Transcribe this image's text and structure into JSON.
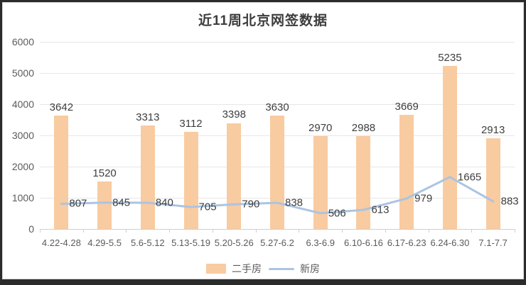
{
  "title": "近11周北京网签数据",
  "colors": {
    "bar": "#f8cba1",
    "line": "#abc4e2",
    "grid": "#e7e7e7",
    "axis_text": "#5b5b5b",
    "data_label": "#3e3e3e",
    "title_text": "#3c3c3c",
    "background": "#ffffff"
  },
  "chart_data": {
    "type": "bar",
    "title": "近11周北京网签数据",
    "categories": [
      "4.22-4.28",
      "4.29-5.5",
      "5.6-5.12",
      "5.13-5.19",
      "5.20-5.26",
      "5.27-6.2",
      "6.3-6.9",
      "6.10-6.16",
      "6.17-6.23",
      "6.24-6.30",
      "7.1-7.7"
    ],
    "series": [
      {
        "name": "二手房",
        "type": "bar",
        "color": "#f8cba1",
        "values": [
          3642,
          1520,
          3313,
          3112,
          3398,
          3630,
          2970,
          2988,
          3669,
          5235,
          2913
        ]
      },
      {
        "name": "新房",
        "type": "line",
        "color": "#abc4e2",
        "values": [
          807,
          845,
          840,
          705,
          790,
          838,
          506,
          613,
          979,
          1665,
          883
        ]
      }
    ],
    "xlabel": "",
    "ylabel": "",
    "ylim": [
      0,
      6000
    ],
    "yticks": [
      0,
      1000,
      2000,
      3000,
      4000,
      5000,
      6000
    ],
    "grid": true,
    "legend_position": "bottom",
    "data_labels": true
  }
}
